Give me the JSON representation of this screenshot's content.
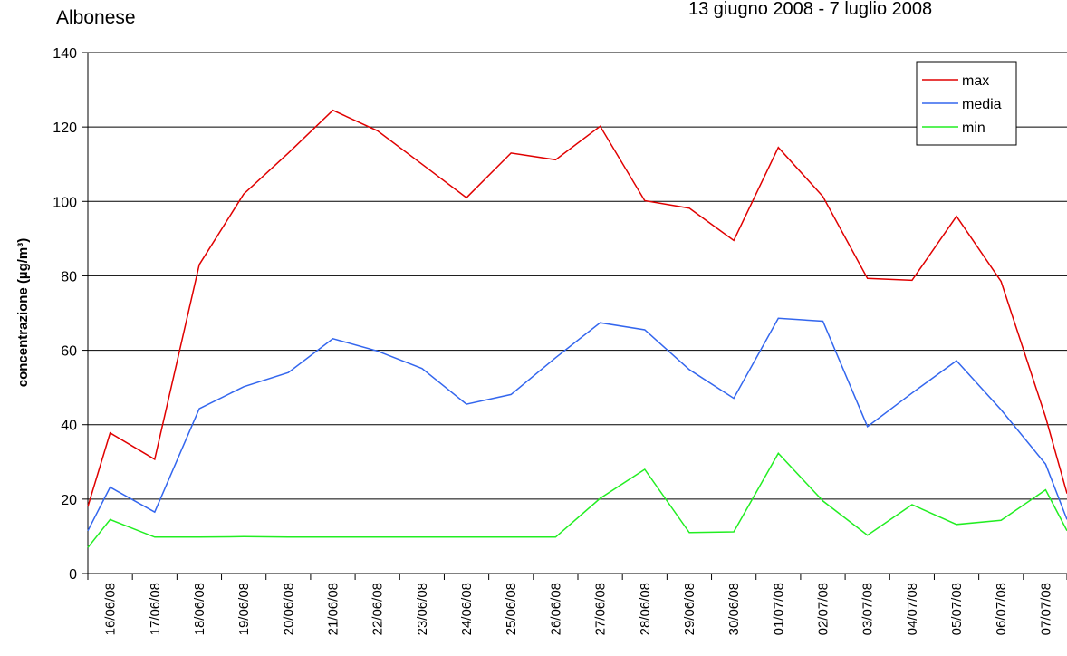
{
  "chart_data": {
    "type": "line",
    "subtitle": "Albonese",
    "date_range": "13 giugno 2008 - 7 luglio 2008",
    "y_label": "concentrazione (µg/m³)",
    "categories": [
      null,
      "16/06/08",
      "17/06/08",
      "18/06/08",
      "19/06/08",
      "20/06/08",
      "21/06/08",
      "22/06/08",
      "23/06/08",
      "24/06/08",
      "25/06/08",
      "26/06/08",
      "27/06/08",
      "28/06/08",
      "29/06/08",
      "30/06/08",
      "01/07/08",
      "02/07/08",
      "03/07/08",
      "04/07/08",
      "05/07/08",
      "06/07/08",
      "07/07/08",
      null
    ],
    "series": [
      {
        "name": "max",
        "color": "#e00000",
        "values": [
          18,
          37.8,
          30.7,
          83,
          102,
          113,
          124.5,
          119,
          110,
          101,
          113,
          111.2,
          120.2,
          100.2,
          98.2,
          89.5,
          114.5,
          101.3,
          79.3,
          78.8,
          96,
          78.5,
          42,
          21.5
        ]
      },
      {
        "name": "media",
        "color": "#3366ee",
        "values": [
          11.5,
          23.2,
          16.5,
          44.3,
          50.2,
          54,
          63.1,
          59.8,
          55.1,
          45.5,
          48.1,
          58,
          67.4,
          65.5,
          54.8,
          47.1,
          68.6,
          67.8,
          39.5,
          48.5,
          57.2,
          44,
          29.4,
          14.5
        ]
      },
      {
        "name": "min",
        "color": "#22ee22",
        "values": [
          7,
          14.5,
          9.8,
          9.8,
          9.9,
          9.8,
          9.8,
          9.8,
          9.8,
          9.8,
          9.8,
          9.8,
          20.2,
          28,
          11,
          11.2,
          32.3,
          19.5,
          10.3,
          18.5,
          13.2,
          14.3,
          22.5,
          11.5
        ]
      }
    ],
    "ylim": [
      0,
      140
    ],
    "yticks": [
      0,
      20,
      40,
      60,
      80,
      100,
      120,
      140
    ],
    "grid": true,
    "legend": "top-right"
  }
}
